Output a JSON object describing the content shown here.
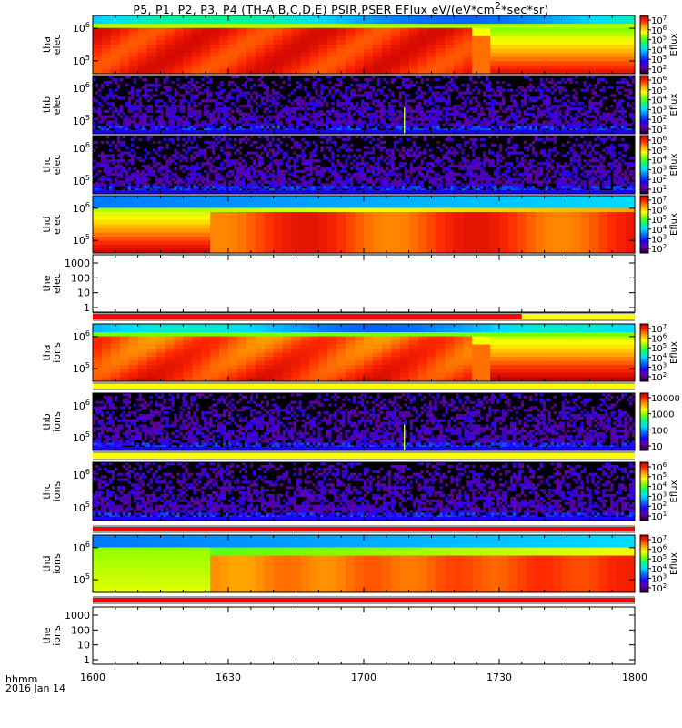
{
  "title_html": "P5, P1, P2, P3, P4 (TH-A,B,C,D,E) PSIR,PSER EFlux eV/(eV*cm<sup>2</sup>*sec*sr)",
  "footer": {
    "hhmm": "hhmm",
    "date": "2016 Jan 14"
  },
  "colors": {
    "flag_red": "#ff0000",
    "flag_yellow": "#ffff00",
    "background_black": "#000000"
  },
  "chart_data": {
    "type": "heatmap",
    "x_axis": {
      "range": [
        "1600",
        "1800"
      ],
      "ticks": [
        "1600",
        "1630",
        "1700",
        "1730",
        "1800"
      ]
    },
    "panels": [
      {
        "probe": "tha",
        "species": "elec",
        "label": [
          "tha",
          "elec"
        ],
        "kind": "spectrogram",
        "y_ticks": [
          "10^6",
          "10^5"
        ],
        "colorbar": {
          "label": "Eflux",
          "ticks": [
            "10^7",
            "10^6",
            "10^5",
            "10^4",
            "10^3",
            "10^2"
          ]
        },
        "pattern": "tha_elec",
        "flag_bar_below": null
      },
      {
        "probe": "thb",
        "species": "elec",
        "label": [
          "thb",
          "elec"
        ],
        "kind": "spectrogram",
        "y_ticks": [
          "10^6",
          "10^5"
        ],
        "colorbar": {
          "label": "Eflux",
          "ticks": [
            "10^6",
            "10^5",
            "10^4",
            "10^3",
            "10^2",
            "10^1"
          ]
        },
        "pattern": "noise",
        "spike_at": "1709",
        "flag_bar_below": null
      },
      {
        "probe": "thc",
        "species": "elec",
        "label": [
          "thc",
          "elec"
        ],
        "kind": "spectrogram",
        "y_ticks": [
          "10^6",
          "10^5"
        ],
        "colorbar": {
          "label": "Eflux",
          "ticks": [
            "10^6",
            "10^5",
            "10^4",
            "10^3",
            "10^2",
            "10^1"
          ]
        },
        "pattern": "noise",
        "flag_bar_below": null
      },
      {
        "probe": "thd",
        "species": "elec",
        "label": [
          "thd",
          "elec"
        ],
        "kind": "spectrogram",
        "y_ticks": [
          "10^6",
          "10^5"
        ],
        "colorbar": {
          "label": "Eflux",
          "ticks": [
            "10^7",
            "10^6",
            "10^5",
            "10^4",
            "10^3",
            "10^2"
          ]
        },
        "pattern": "thd_elec",
        "flag_bar_below": null
      },
      {
        "probe": "the",
        "species": "elec",
        "label": [
          "the",
          "elec"
        ],
        "kind": "empty",
        "y_ticks": [
          "1000",
          "100",
          "10",
          "1"
        ],
        "colorbar": null,
        "flag_bar_below": {
          "segments": [
            {
              "from": "1600",
              "to": "1735",
              "color": "red"
            },
            {
              "from": "1735",
              "to": "1800",
              "color": "yellow"
            }
          ]
        }
      },
      {
        "probe": "tha",
        "species": "ions",
        "label": [
          "tha",
          "ions"
        ],
        "kind": "spectrogram",
        "y_ticks": [
          "10^6",
          "10^5"
        ],
        "colorbar": {
          "label": "Eflux",
          "ticks": [
            "10^7",
            "10^6",
            "10^5",
            "10^4",
            "10^3",
            "10^2"
          ]
        },
        "pattern": "tha_ions",
        "flag_bar_below": {
          "segments": [
            {
              "from": "1600",
              "to": "1800",
              "color": "yellow"
            }
          ]
        }
      },
      {
        "probe": "thb",
        "species": "ions",
        "label": [
          "thb",
          "ions"
        ],
        "kind": "spectrogram",
        "y_ticks": [
          "10^6",
          "10^5"
        ],
        "colorbar": {
          "label": "",
          "ticks": [
            "10000",
            "1000",
            "100",
            "10"
          ]
        },
        "pattern": "noise",
        "spike_at": "1709",
        "flag_bar_below": {
          "segments": [
            {
              "from": "1600",
              "to": "1800",
              "color": "yellow"
            }
          ]
        }
      },
      {
        "probe": "thc",
        "species": "ions",
        "label": [
          "thc",
          "ions"
        ],
        "kind": "spectrogram",
        "y_ticks": [
          "10^6",
          "10^5"
        ],
        "colorbar": {
          "label": "Eflux",
          "ticks": [
            "10^6",
            "10^5",
            "10^4",
            "10^3",
            "10^2",
            "10^1"
          ]
        },
        "pattern": "noise",
        "flag_bar_below": {
          "segments": [
            {
              "from": "1600",
              "to": "1800",
              "color": "red"
            }
          ]
        }
      },
      {
        "probe": "thd",
        "species": "ions",
        "label": [
          "thd",
          "ions"
        ],
        "kind": "spectrogram",
        "y_ticks": [
          "10^6",
          "10^5"
        ],
        "colorbar": {
          "label": "Eflux",
          "ticks": [
            "10^7",
            "10^6",
            "10^5",
            "10^4",
            "10^3",
            "10^2"
          ]
        },
        "pattern": "thd_ions",
        "flag_bar_below": {
          "segments": [
            {
              "from": "1600",
              "to": "1800",
              "color": "red"
            }
          ]
        }
      },
      {
        "probe": "the",
        "species": "ions",
        "label": [
          "the",
          "ions"
        ],
        "kind": "empty",
        "y_ticks": [
          "1000",
          "100",
          "10",
          "1"
        ],
        "colorbar": null,
        "flag_bar_below": null
      }
    ]
  }
}
